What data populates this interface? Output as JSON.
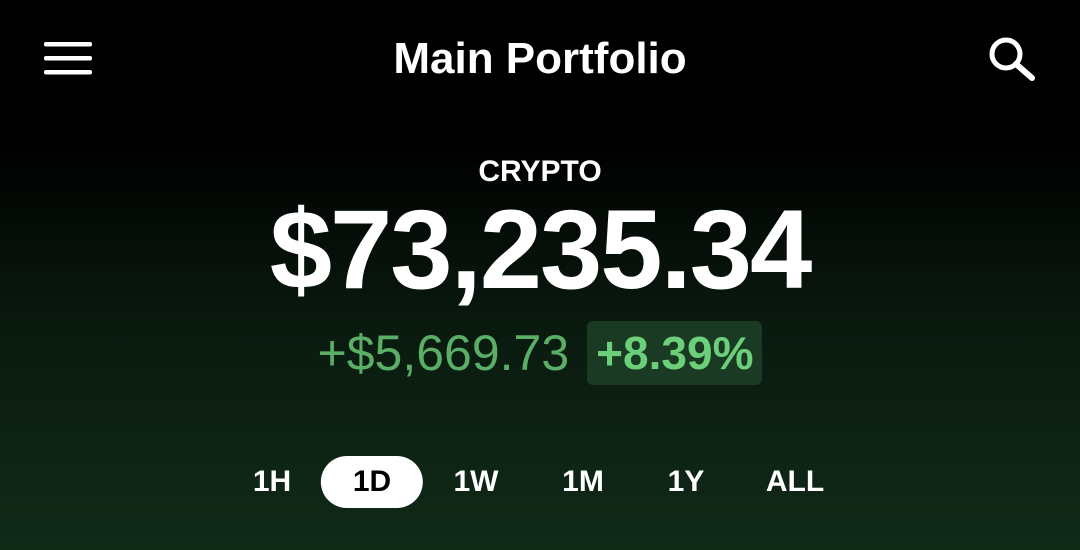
{
  "header": {
    "title": "Main Portfolio"
  },
  "portfolio": {
    "label": "CRYPTO",
    "balance": "$73,235.34",
    "change": "+$5,669.73",
    "change_percent": "+8.39%"
  },
  "time_ranges": {
    "options": [
      "1H",
      "1D",
      "1W",
      "1M",
      "1Y",
      "ALL"
    ],
    "selected_index": 1
  }
}
